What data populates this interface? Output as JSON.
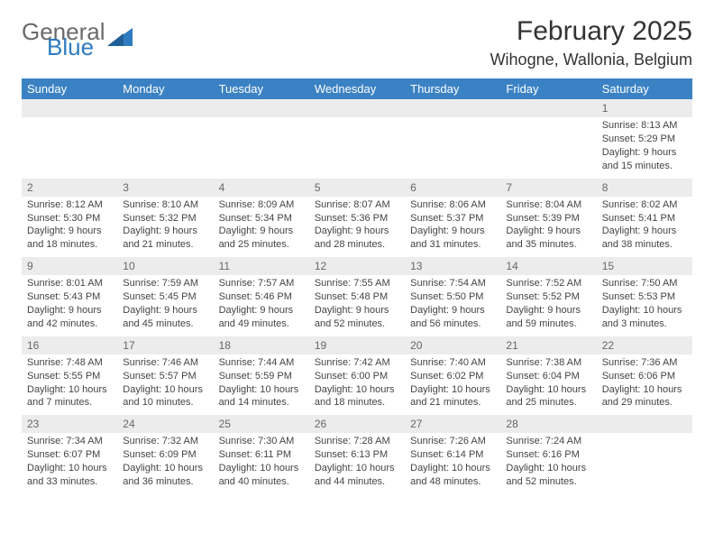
{
  "logo": {
    "general": "General",
    "blue": "Blue"
  },
  "title": "February 2025",
  "location": "Wihogne, Wallonia, Belgium",
  "colors": {
    "header_bg": "#3b82c4",
    "header_fg": "#ffffff",
    "daynum_bg": "#ececec",
    "logo_blue": "#2f7bbf",
    "logo_gray": "#6b6b6b"
  },
  "weekdays": [
    "Sunday",
    "Monday",
    "Tuesday",
    "Wednesday",
    "Thursday",
    "Friday",
    "Saturday"
  ],
  "weeks": [
    [
      null,
      null,
      null,
      null,
      null,
      null,
      {
        "n": "1",
        "sunrise": "8:13 AM",
        "sunset": "5:29 PM",
        "daylight": "9 hours and 15 minutes."
      }
    ],
    [
      {
        "n": "2",
        "sunrise": "8:12 AM",
        "sunset": "5:30 PM",
        "daylight": "9 hours and 18 minutes."
      },
      {
        "n": "3",
        "sunrise": "8:10 AM",
        "sunset": "5:32 PM",
        "daylight": "9 hours and 21 minutes."
      },
      {
        "n": "4",
        "sunrise": "8:09 AM",
        "sunset": "5:34 PM",
        "daylight": "9 hours and 25 minutes."
      },
      {
        "n": "5",
        "sunrise": "8:07 AM",
        "sunset": "5:36 PM",
        "daylight": "9 hours and 28 minutes."
      },
      {
        "n": "6",
        "sunrise": "8:06 AM",
        "sunset": "5:37 PM",
        "daylight": "9 hours and 31 minutes."
      },
      {
        "n": "7",
        "sunrise": "8:04 AM",
        "sunset": "5:39 PM",
        "daylight": "9 hours and 35 minutes."
      },
      {
        "n": "8",
        "sunrise": "8:02 AM",
        "sunset": "5:41 PM",
        "daylight": "9 hours and 38 minutes."
      }
    ],
    [
      {
        "n": "9",
        "sunrise": "8:01 AM",
        "sunset": "5:43 PM",
        "daylight": "9 hours and 42 minutes."
      },
      {
        "n": "10",
        "sunrise": "7:59 AM",
        "sunset": "5:45 PM",
        "daylight": "9 hours and 45 minutes."
      },
      {
        "n": "11",
        "sunrise": "7:57 AM",
        "sunset": "5:46 PM",
        "daylight": "9 hours and 49 minutes."
      },
      {
        "n": "12",
        "sunrise": "7:55 AM",
        "sunset": "5:48 PM",
        "daylight": "9 hours and 52 minutes."
      },
      {
        "n": "13",
        "sunrise": "7:54 AM",
        "sunset": "5:50 PM",
        "daylight": "9 hours and 56 minutes."
      },
      {
        "n": "14",
        "sunrise": "7:52 AM",
        "sunset": "5:52 PM",
        "daylight": "9 hours and 59 minutes."
      },
      {
        "n": "15",
        "sunrise": "7:50 AM",
        "sunset": "5:53 PM",
        "daylight": "10 hours and 3 minutes."
      }
    ],
    [
      {
        "n": "16",
        "sunrise": "7:48 AM",
        "sunset": "5:55 PM",
        "daylight": "10 hours and 7 minutes."
      },
      {
        "n": "17",
        "sunrise": "7:46 AM",
        "sunset": "5:57 PM",
        "daylight": "10 hours and 10 minutes."
      },
      {
        "n": "18",
        "sunrise": "7:44 AM",
        "sunset": "5:59 PM",
        "daylight": "10 hours and 14 minutes."
      },
      {
        "n": "19",
        "sunrise": "7:42 AM",
        "sunset": "6:00 PM",
        "daylight": "10 hours and 18 minutes."
      },
      {
        "n": "20",
        "sunrise": "7:40 AM",
        "sunset": "6:02 PM",
        "daylight": "10 hours and 21 minutes."
      },
      {
        "n": "21",
        "sunrise": "7:38 AM",
        "sunset": "6:04 PM",
        "daylight": "10 hours and 25 minutes."
      },
      {
        "n": "22",
        "sunrise": "7:36 AM",
        "sunset": "6:06 PM",
        "daylight": "10 hours and 29 minutes."
      }
    ],
    [
      {
        "n": "23",
        "sunrise": "7:34 AM",
        "sunset": "6:07 PM",
        "daylight": "10 hours and 33 minutes."
      },
      {
        "n": "24",
        "sunrise": "7:32 AM",
        "sunset": "6:09 PM",
        "daylight": "10 hours and 36 minutes."
      },
      {
        "n": "25",
        "sunrise": "7:30 AM",
        "sunset": "6:11 PM",
        "daylight": "10 hours and 40 minutes."
      },
      {
        "n": "26",
        "sunrise": "7:28 AM",
        "sunset": "6:13 PM",
        "daylight": "10 hours and 44 minutes."
      },
      {
        "n": "27",
        "sunrise": "7:26 AM",
        "sunset": "6:14 PM",
        "daylight": "10 hours and 48 minutes."
      },
      {
        "n": "28",
        "sunrise": "7:24 AM",
        "sunset": "6:16 PM",
        "daylight": "10 hours and 52 minutes."
      },
      null
    ]
  ],
  "labels": {
    "sunrise": "Sunrise: ",
    "sunset": "Sunset: ",
    "daylight": "Daylight: "
  }
}
